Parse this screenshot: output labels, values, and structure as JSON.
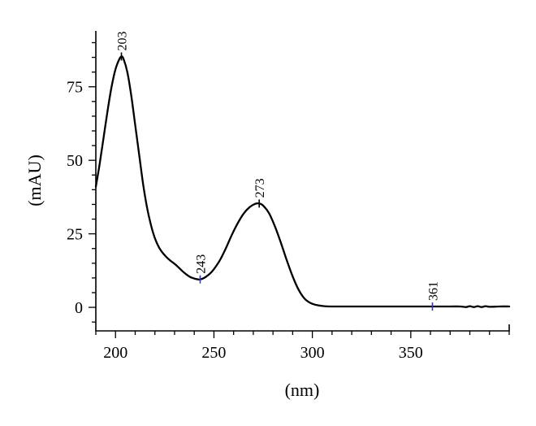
{
  "chart_data": {
    "type": "line",
    "title": "",
    "xlabel": "(nm)",
    "ylabel": "(mAU)",
    "xlim": [
      190,
      400
    ],
    "ylim": [
      -8,
      94
    ],
    "xticks": [
      200,
      250,
      300,
      350
    ],
    "yticks": [
      0,
      25,
      50,
      75
    ],
    "grid": false,
    "legend": "none",
    "line_color": "#000000",
    "marker_color": "#3a3ab0",
    "series": [
      {
        "values": [
          [
            190,
            41
          ],
          [
            192,
            49
          ],
          [
            194,
            58
          ],
          [
            196,
            67
          ],
          [
            198,
            75
          ],
          [
            200,
            81
          ],
          [
            202,
            84.5
          ],
          [
            203,
            85.3
          ],
          [
            204,
            84.6
          ],
          [
            206,
            80
          ],
          [
            208,
            72
          ],
          [
            210,
            62
          ],
          [
            212,
            52
          ],
          [
            214,
            42
          ],
          [
            216,
            34
          ],
          [
            218,
            28
          ],
          [
            220,
            23.5
          ],
          [
            222,
            20.5
          ],
          [
            224,
            18.5
          ],
          [
            226,
            17
          ],
          [
            228,
            15.8
          ],
          [
            230,
            14.8
          ],
          [
            232,
            13.6
          ],
          [
            234,
            12.3
          ],
          [
            236,
            11.2
          ],
          [
            238,
            10.3
          ],
          [
            240,
            9.8
          ],
          [
            242,
            9.5
          ],
          [
            243,
            9.5
          ],
          [
            245,
            10
          ],
          [
            248,
            11.5
          ],
          [
            250,
            13
          ],
          [
            253,
            16
          ],
          [
            256,
            20
          ],
          [
            259,
            24.5
          ],
          [
            262,
            28.5
          ],
          [
            265,
            31.8
          ],
          [
            268,
            34
          ],
          [
            271,
            35.2
          ],
          [
            273,
            35.3
          ],
          [
            275,
            34.6
          ],
          [
            278,
            32
          ],
          [
            281,
            27.5
          ],
          [
            284,
            22
          ],
          [
            287,
            16
          ],
          [
            290,
            10.5
          ],
          [
            293,
            6
          ],
          [
            296,
            3
          ],
          [
            299,
            1.5
          ],
          [
            302,
            0.8
          ],
          [
            306,
            0.4
          ],
          [
            310,
            0.3
          ],
          [
            320,
            0.3
          ],
          [
            330,
            0.3
          ],
          [
            340,
            0.3
          ],
          [
            350,
            0.3
          ],
          [
            361,
            0.3
          ],
          [
            370,
            0.3
          ],
          [
            375,
            0.3
          ],
          [
            378,
            0.1
          ],
          [
            380,
            0.4
          ],
          [
            382,
            0.1
          ],
          [
            384,
            0.4
          ],
          [
            386,
            0.1
          ],
          [
            388,
            0.4
          ],
          [
            390,
            0.2
          ],
          [
            395,
            0.3
          ],
          [
            400,
            0.3
          ]
        ]
      }
    ],
    "peaks": [
      {
        "label": "203",
        "x": 203,
        "y": 85.3,
        "mark_color": "#000000"
      },
      {
        "label": "243",
        "x": 243,
        "y": 9.5,
        "mark_color": "#3a3ab0"
      },
      {
        "label": "273",
        "x": 273,
        "y": 35.3,
        "mark_color": "#000000"
      },
      {
        "label": "361",
        "x": 361,
        "y": 0.3,
        "mark_color": "#3a3ab0"
      }
    ]
  }
}
